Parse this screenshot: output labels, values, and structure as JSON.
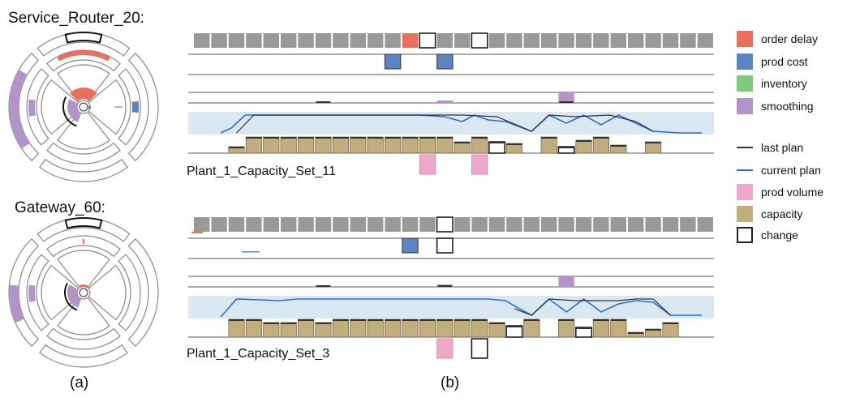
{
  "radial": {
    "top_title": "Service_Router_20:",
    "bottom_title": "Gateway_60:",
    "panel_label": "(a)"
  },
  "timeline": {
    "panel_label": "(b)",
    "top_set_label": "Plant_1_Capacity_Set_11",
    "bottom_set_label": "Plant_1_Capacity_Set_3"
  },
  "legend": {
    "order_delay": "order delay",
    "prod_cost": "prod cost",
    "inventory": "inventory",
    "smoothing": "smoothing",
    "last_plan": "last plan",
    "current_plan": "current plan",
    "prod_volume": "prod volume",
    "capacity": "capacity",
    "change": "change"
  },
  "colors": {
    "order_delay": "#e8705f",
    "prod_cost": "#5b84c0",
    "inventory": "#7fc97f",
    "smoothing": "#b294c7",
    "last_plan": "#333333",
    "current_plan": "#2a6fd1",
    "prod_volume": "#f0a8c8",
    "capacity": "#c2ad7f",
    "change": "#222222",
    "cell": "#999999",
    "band": "#dbe7f3"
  }
}
